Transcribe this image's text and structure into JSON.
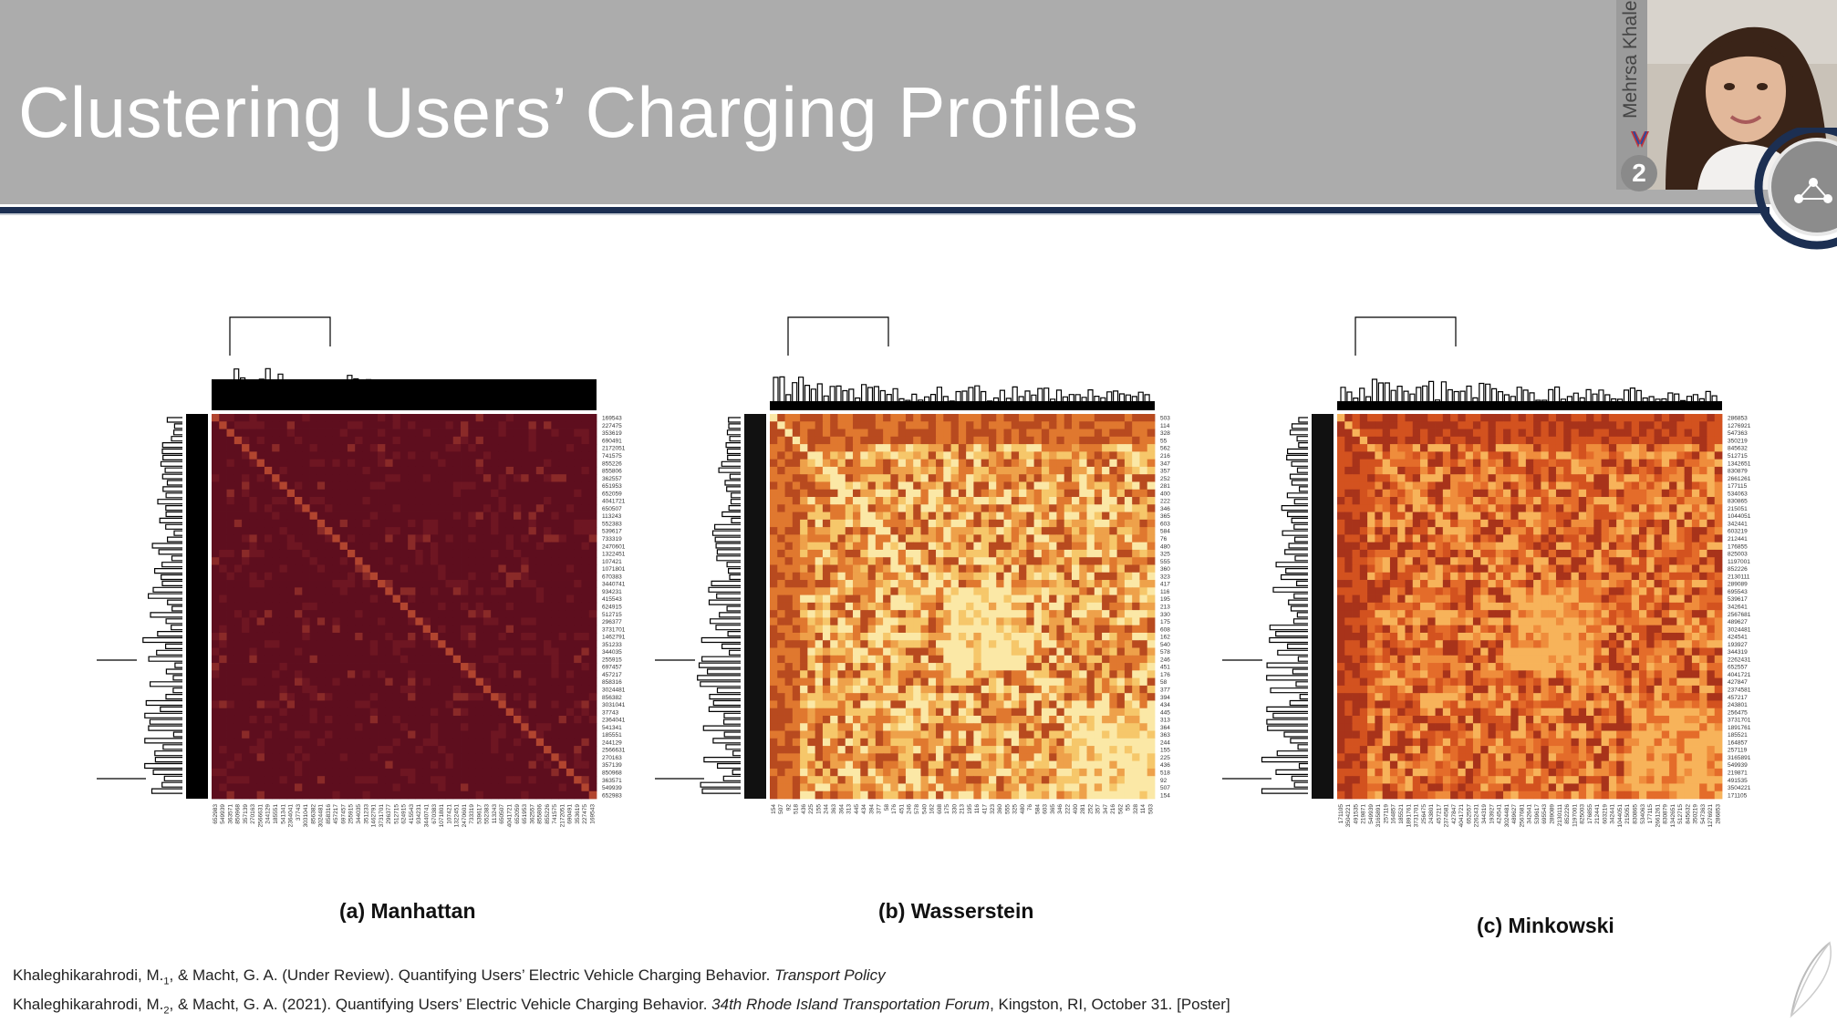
{
  "slide": {
    "title": "Clustering Users’ Charging Profiles"
  },
  "presenter": {
    "name": "Mehrsa Khale",
    "badge_number": "2"
  },
  "figures": [
    {
      "caption": "(a) Manhattan",
      "palette": [
        "#5e0e1e",
        "#6e1622",
        "#8a2a28",
        "#b2452f"
      ],
      "row_labels": [
        "169543",
        "227475",
        "353619",
        "690491",
        "2172051",
        "741575",
        "855226",
        "855806",
        "362557",
        "651953",
        "652059",
        "4041721",
        "650507",
        "113243",
        "552383",
        "539617",
        "733319",
        "2470601",
        "1322451",
        "107421",
        "1071801",
        "670383",
        "3440741",
        "934231",
        "415543",
        "624915",
        "512715",
        "296377",
        "3731701",
        "1462791",
        "351233",
        "344035",
        "255915",
        "697457",
        "457217",
        "858316",
        "3024481",
        "856382",
        "3031041",
        "37743",
        "2364041",
        "541341",
        "185551",
        "244129",
        "2566631",
        "270163",
        "357139",
        "850968",
        "363571",
        "549939",
        "652983"
      ],
      "col_labels": [
        "652983",
        "549939",
        "363571",
        "850968",
        "357139",
        "270163",
        "2566631",
        "244129",
        "185551",
        "541341",
        "2364041",
        "37743",
        "3031041",
        "856382",
        "3024481",
        "858316",
        "457217",
        "697457",
        "255915",
        "344035",
        "351233",
        "1462791",
        "3731701",
        "296377",
        "512715",
        "624915",
        "415543",
        "934231",
        "3440741",
        "670383",
        "1071801",
        "107421",
        "1322451",
        "2470601",
        "733319",
        "539617",
        "552383",
        "113243",
        "650507",
        "4041721",
        "652059",
        "651953",
        "362557",
        "855806",
        "855226",
        "741575",
        "2172051",
        "690491",
        "353619",
        "227475",
        "169543"
      ]
    },
    {
      "caption": "(b) Wasserstein",
      "palette": [
        "#fbe8a6",
        "#f6c76a",
        "#eea14a",
        "#e0782f",
        "#b84a1f"
      ],
      "row_labels": [
        "503",
        "114",
        "328",
        "55",
        "562",
        "216",
        "347",
        "357",
        "252",
        "281",
        "400",
        "222",
        "346",
        "365",
        "603",
        "584",
        "76",
        "480",
        "325",
        "555",
        "360",
        "323",
        "417",
        "116",
        "195",
        "213",
        "330",
        "175",
        "608",
        "162",
        "540",
        "578",
        "246",
        "451",
        "176",
        "58",
        "377",
        "394",
        "434",
        "445",
        "313",
        "364",
        "363",
        "244",
        "155",
        "225",
        "436",
        "518",
        "92",
        "507",
        "154"
      ],
      "col_labels": [
        "154",
        "507",
        "92",
        "518",
        "436",
        "225",
        "155",
        "244",
        "363",
        "364",
        "313",
        "445",
        "434",
        "394",
        "377",
        "58",
        "176",
        "451",
        "246",
        "578",
        "540",
        "162",
        "608",
        "175",
        "330",
        "213",
        "195",
        "116",
        "417",
        "323",
        "360",
        "555",
        "325",
        "480",
        "76",
        "584",
        "603",
        "365",
        "346",
        "222",
        "400",
        "281",
        "252",
        "357",
        "347",
        "216",
        "562",
        "55",
        "328",
        "114",
        "503"
      ]
    },
    {
      "caption": "(c) Minkowski",
      "palette": [
        "#f7b35a",
        "#ef8d3c",
        "#e46c2a",
        "#d3521f",
        "#a8331a"
      ],
      "row_labels": [
        "286853",
        "1276921",
        "547363",
        "350219",
        "845632",
        "512715",
        "1342651",
        "830879",
        "2661261",
        "177115",
        "534063",
        "830865",
        "215051",
        "1044051",
        "342441",
        "603219",
        "212441",
        "176855",
        "825003",
        "1197001",
        "852226",
        "2130111",
        "289089",
        "695543",
        "539617",
        "342641",
        "2567681",
        "489627",
        "3024481",
        "424541",
        "193927",
        "344319",
        "2262431",
        "652557",
        "4041721",
        "427847",
        "2374581",
        "457217",
        "243801",
        "256475",
        "3731701",
        "1891761",
        "185521",
        "164857",
        "257119",
        "3165891",
        "549939",
        "219871",
        "491535",
        "3504221",
        "171105"
      ],
      "col_labels": [
        "171105",
        "3504221",
        "491535",
        "219871",
        "549939",
        "3165891",
        "257119",
        "164857",
        "185521",
        "1891761",
        "3731701",
        "256475",
        "243801",
        "457217",
        "2374581",
        "427847",
        "4041721",
        "652557",
        "2262431",
        "344319",
        "193927",
        "424541",
        "3024481",
        "489627",
        "2567681",
        "342641",
        "539617",
        "695543",
        "289089",
        "2130111",
        "852226",
        "1197001",
        "825003",
        "176855",
        "212441",
        "603219",
        "342441",
        "1044051",
        "215051",
        "830865",
        "534063",
        "177115",
        "2661261",
        "830879",
        "1342651",
        "512715",
        "845632",
        "350219",
        "547363",
        "1276921",
        "286853"
      ]
    }
  ],
  "references": [
    {
      "text_before": "Khaleghikarahrodi, M.",
      "superscript": "1",
      "text_middle": ", & Macht, G. A. (Under Review). Quantifying Users’ Electric Vehicle Charging Behavior. ",
      "italic": "Transport Policy",
      "text_after": ""
    },
    {
      "text_before": "Khaleghikarahrodi, M.",
      "superscript": "2",
      "text_middle": ", & Macht, G. A. (2021). Quantifying Users’ Electric Vehicle Charging Behavior. ",
      "italic": "34th Rhode Island Transportation Forum",
      "text_after": ", Kingston, RI, October 31. [Poster]"
    }
  ]
}
